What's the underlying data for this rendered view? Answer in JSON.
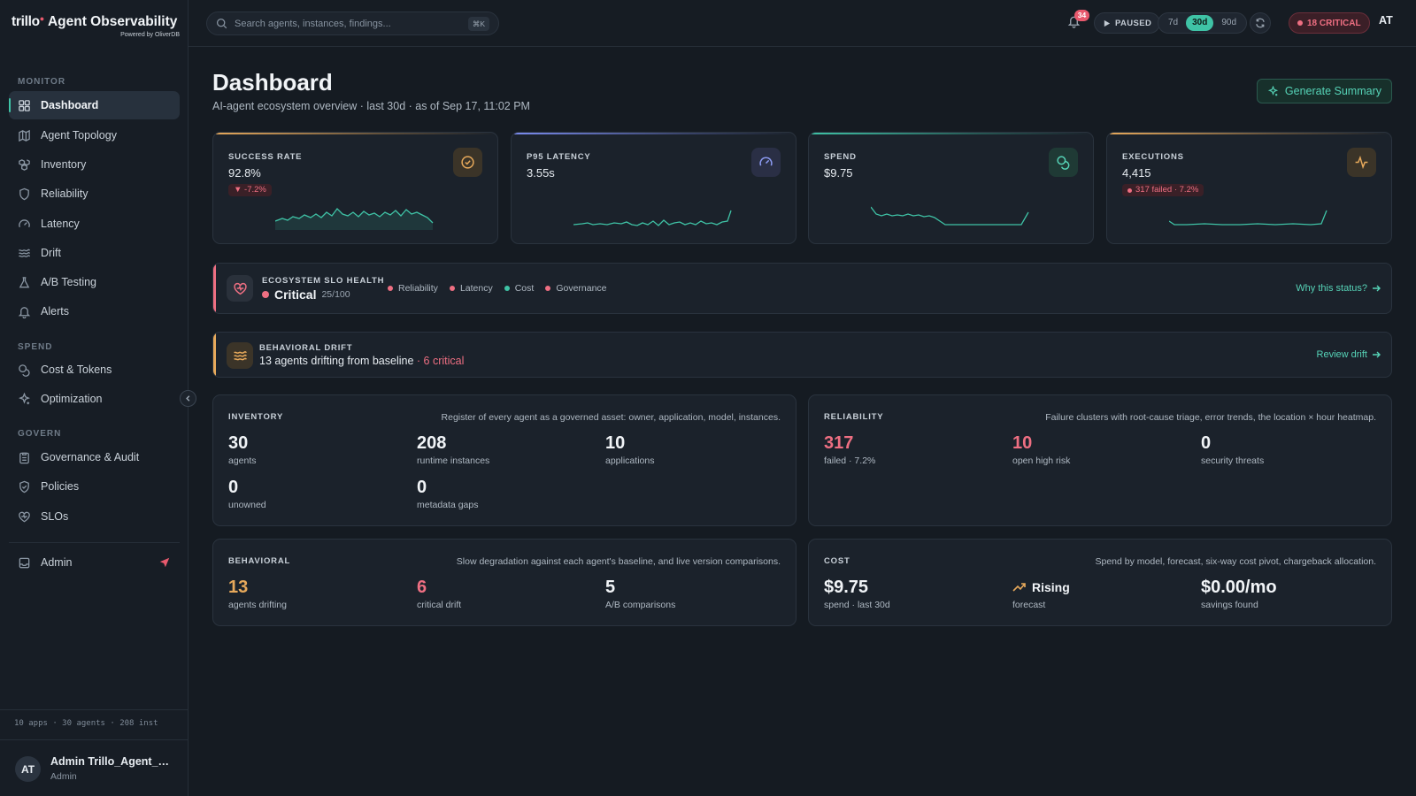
{
  "brand": {
    "title_logo": "trillo",
    "title_rest": "Agent Observability",
    "subtitle": "Powered by OliverDB"
  },
  "sidebar": {
    "sections": [
      {
        "label": "MONITOR",
        "items": [
          {
            "label": "Dashboard",
            "icon": "grid-icon",
            "active": true
          },
          {
            "label": "Agent Topology",
            "icon": "map-icon"
          },
          {
            "label": "Inventory",
            "icon": "boxes-icon"
          },
          {
            "label": "Reliability",
            "icon": "shield-icon"
          },
          {
            "label": "Latency",
            "icon": "gauge-icon"
          },
          {
            "label": "Drift",
            "icon": "waves-icon"
          },
          {
            "label": "A/B Testing",
            "icon": "flask-icon"
          },
          {
            "label": "Alerts",
            "icon": "bell-icon"
          }
        ]
      },
      {
        "label": "SPEND",
        "items": [
          {
            "label": "Cost & Tokens",
            "icon": "coins-icon"
          },
          {
            "label": "Optimization",
            "icon": "sparkle-icon"
          }
        ]
      },
      {
        "label": "GOVERN",
        "items": [
          {
            "label": "Governance & Audit",
            "icon": "clipboard-icon"
          },
          {
            "label": "Policies",
            "icon": "shield-check-icon"
          },
          {
            "label": "SLOs",
            "icon": "heart-icon"
          }
        ]
      }
    ],
    "admin": {
      "label": "Admin",
      "icon": "box-icon",
      "pin_icon": "send-icon"
    },
    "stats": "10 apps · 30 agents · 208 inst",
    "user": {
      "initials": "AT",
      "name": "Admin Trillo_Agent_Ob...",
      "role": "Admin"
    }
  },
  "topbar": {
    "search_placeholder": "Search agents, instances, findings...",
    "search_shortcut": "⌘K",
    "notifications": "34",
    "paused_label": "PAUSED",
    "ranges": [
      "7d",
      "30d",
      "90d"
    ],
    "range_selected": "30d",
    "critical_label": "18 CRITICAL",
    "avatar": "AT"
  },
  "page": {
    "title": "Dashboard",
    "subtitle": "AI-agent ecosystem overview · last 30d · as of Sep 17, 11:02 PM",
    "generate_label": "Generate Summary"
  },
  "kpis": [
    {
      "label": "SUCCESS RATE",
      "value": "92.8%",
      "badge": "▼ -7.2%",
      "icon": "check-circle-icon",
      "accent": "#e7a95b"
    },
    {
      "label": "P95 LATENCY",
      "value": "3.55s",
      "badge": "",
      "icon": "gauge-icon",
      "accent": "#7b8cf0"
    },
    {
      "label": "SPEND",
      "value": "$9.75",
      "badge": "",
      "icon": "coins-icon",
      "accent": "#3fc3a6"
    },
    {
      "label": "EXECUTIONS",
      "value": "4,415",
      "badge": "317 failed · 7.2%",
      "icon": "activity-icon",
      "accent": "#e7a95b"
    }
  ],
  "slo": {
    "label": "ECOSYSTEM SLO HEALTH",
    "status": "Critical",
    "score": "25/100",
    "legend": [
      {
        "label": "Reliability",
        "color": "#ee6f82"
      },
      {
        "label": "Latency",
        "color": "#ee6f82"
      },
      {
        "label": "Cost",
        "color": "#3fc3a6"
      },
      {
        "label": "Governance",
        "color": "#ee6f82"
      }
    ],
    "link": "Why this status?"
  },
  "drift": {
    "label": "BEHAVIORAL DRIFT",
    "text": "13 agents drifting from baseline",
    "critical": "· 6 critical",
    "link": "Review drift"
  },
  "cards": {
    "inventory": {
      "title": "INVENTORY",
      "desc": "Register of every agent as a governed asset: owner, application, model, instances.",
      "metrics": [
        {
          "value": "30",
          "label": "agents"
        },
        {
          "value": "208",
          "label": "runtime instances"
        },
        {
          "value": "10",
          "label": "applications"
        },
        {
          "value": "0",
          "label": "unowned"
        },
        {
          "value": "0",
          "label": "metadata gaps"
        }
      ]
    },
    "reliability": {
      "title": "RELIABILITY",
      "desc": "Failure clusters with root-cause triage, error trends, the location × hour heatmap.",
      "metrics": [
        {
          "value": "317",
          "label": "failed · 7.2%"
        },
        {
          "value": "10",
          "label": "open high risk"
        },
        {
          "value": "0",
          "label": "security threats"
        }
      ]
    },
    "behavioral": {
      "title": "BEHAVIORAL",
      "desc": "Slow degradation against each agent's baseline, and live version comparisons.",
      "metrics": [
        {
          "value": "13",
          "label": "agents drifting"
        },
        {
          "value": "6",
          "label": "critical drift"
        },
        {
          "value": "5",
          "label": "A/B comparisons"
        }
      ]
    },
    "cost": {
      "title": "COST",
      "desc": "Spend by model, forecast, six-way cost pivot, chargeback allocation.",
      "metrics": [
        {
          "value": "$9.75",
          "label": "spend · last 30d"
        },
        {
          "value": "Rising",
          "label": "forecast"
        },
        {
          "value": "$0.00/mo",
          "label": "savings found"
        }
      ]
    }
  }
}
